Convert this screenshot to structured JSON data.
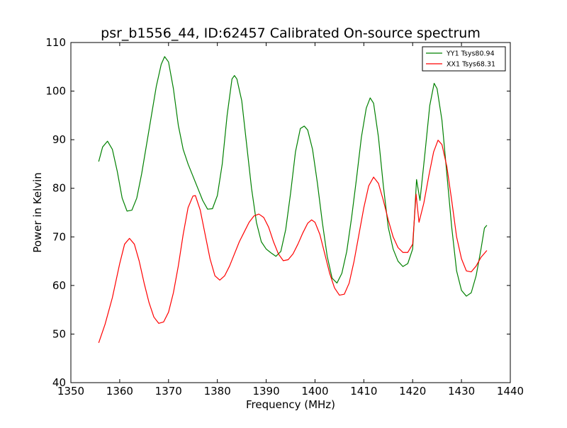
{
  "chart_data": {
    "type": "line",
    "title": "psr_b1556_44, ID:62457 Calibrated On-source spectrum",
    "xlabel": "Frequency (MHz)",
    "ylabel": "Power in Kelvin",
    "xlim": [
      1350,
      1440
    ],
    "ylim": [
      40,
      110
    ],
    "x_ticks": [
      1350,
      1360,
      1370,
      1380,
      1390,
      1400,
      1410,
      1420,
      1430,
      1440
    ],
    "y_ticks": [
      40,
      50,
      60,
      70,
      80,
      90,
      100,
      110
    ],
    "grid": false,
    "legend_position": "top-right",
    "series": [
      {
        "name": "YY1 Tsys80.94",
        "color": "#008000",
        "points": [
          [
            1355.7,
            85.5
          ],
          [
            1356.5,
            88.5
          ],
          [
            1357.5,
            89.7
          ],
          [
            1358.5,
            88
          ],
          [
            1359.5,
            83.5
          ],
          [
            1360.5,
            78
          ],
          [
            1361.5,
            75.3
          ],
          [
            1362.5,
            75.5
          ],
          [
            1363.5,
            78
          ],
          [
            1364.5,
            83
          ],
          [
            1365.5,
            89
          ],
          [
            1366.5,
            95
          ],
          [
            1367.5,
            101
          ],
          [
            1368.5,
            105.5
          ],
          [
            1369.2,
            107.1
          ],
          [
            1370,
            106
          ],
          [
            1371,
            100.5
          ],
          [
            1372,
            93
          ],
          [
            1373,
            88
          ],
          [
            1374,
            85
          ],
          [
            1375,
            82.5
          ],
          [
            1376,
            80
          ],
          [
            1377,
            77.5
          ],
          [
            1378,
            75.7
          ],
          [
            1379,
            75.8
          ],
          [
            1380,
            78.5
          ],
          [
            1381,
            85
          ],
          [
            1382,
            95
          ],
          [
            1383,
            102.5
          ],
          [
            1383.5,
            103.2
          ],
          [
            1384,
            102.5
          ],
          [
            1385,
            98
          ],
          [
            1386,
            89
          ],
          [
            1387,
            80
          ],
          [
            1388,
            73
          ],
          [
            1389,
            69
          ],
          [
            1390,
            67.5
          ],
          [
            1391,
            66.7
          ],
          [
            1392,
            66
          ],
          [
            1393,
            67
          ],
          [
            1394,
            71.5
          ],
          [
            1395,
            79
          ],
          [
            1396,
            87.5
          ],
          [
            1397,
            92.3
          ],
          [
            1397.8,
            92.8
          ],
          [
            1398.5,
            92
          ],
          [
            1399.5,
            88
          ],
          [
            1400.5,
            81
          ],
          [
            1401.5,
            73
          ],
          [
            1402.5,
            66
          ],
          [
            1403.5,
            61.5
          ],
          [
            1404.5,
            60.5
          ],
          [
            1405.5,
            62.5
          ],
          [
            1406.5,
            67
          ],
          [
            1407.5,
            74
          ],
          [
            1408.5,
            82
          ],
          [
            1409.5,
            90.5
          ],
          [
            1410.5,
            96.5
          ],
          [
            1411.3,
            98.6
          ],
          [
            1412,
            97.5
          ],
          [
            1413,
            90.5
          ],
          [
            1414,
            80.5
          ],
          [
            1415,
            72
          ],
          [
            1416,
            67.5
          ],
          [
            1417,
            65
          ],
          [
            1418,
            63.9
          ],
          [
            1419,
            64.5
          ],
          [
            1420,
            67.5
          ],
          [
            1420.8,
            81.8
          ],
          [
            1421.5,
            77.5
          ],
          [
            1422.5,
            87
          ],
          [
            1423.5,
            97
          ],
          [
            1424.4,
            101.6
          ],
          [
            1425,
            100.5
          ],
          [
            1426,
            94
          ],
          [
            1427,
            83
          ],
          [
            1428,
            72
          ],
          [
            1429,
            63
          ],
          [
            1430,
            59
          ],
          [
            1431,
            57.8
          ],
          [
            1432,
            58.5
          ],
          [
            1433,
            62
          ],
          [
            1434,
            67.5
          ],
          [
            1434.7,
            71.8
          ],
          [
            1435.2,
            72.4
          ]
        ]
      },
      {
        "name": "XX1 Tsys68.31",
        "color": "#ff0000",
        "points": [
          [
            1355.7,
            48.2
          ],
          [
            1357,
            52
          ],
          [
            1358.5,
            57.5
          ],
          [
            1360,
            64.5
          ],
          [
            1361,
            68.5
          ],
          [
            1362,
            69.7
          ],
          [
            1363,
            68.5
          ],
          [
            1364,
            65
          ],
          [
            1365,
            60.5
          ],
          [
            1366,
            56.5
          ],
          [
            1367,
            53.5
          ],
          [
            1368,
            52.2
          ],
          [
            1369,
            52.5
          ],
          [
            1370,
            54.5
          ],
          [
            1371,
            58.5
          ],
          [
            1372,
            64
          ],
          [
            1373,
            70.5
          ],
          [
            1374,
            76
          ],
          [
            1375,
            78.4
          ],
          [
            1375.5,
            78.5
          ],
          [
            1376.5,
            75.5
          ],
          [
            1377.5,
            70.5
          ],
          [
            1378.5,
            65.5
          ],
          [
            1379.5,
            62
          ],
          [
            1380.5,
            61.1
          ],
          [
            1381.5,
            62
          ],
          [
            1382.5,
            64
          ],
          [
            1383.5,
            66.5
          ],
          [
            1384.5,
            69
          ],
          [
            1385.5,
            71
          ],
          [
            1386.5,
            73
          ],
          [
            1387.5,
            74.3
          ],
          [
            1388.5,
            74.7
          ],
          [
            1389.5,
            74
          ],
          [
            1390.5,
            72
          ],
          [
            1391.5,
            69
          ],
          [
            1392.5,
            66.5
          ],
          [
            1393.5,
            65.1
          ],
          [
            1394.5,
            65.3
          ],
          [
            1395.5,
            66.5
          ],
          [
            1396.5,
            68.5
          ],
          [
            1397.5,
            70.8
          ],
          [
            1398.5,
            72.8
          ],
          [
            1399.3,
            73.5
          ],
          [
            1400,
            73
          ],
          [
            1401,
            70.5
          ],
          [
            1402,
            66.5
          ],
          [
            1403,
            62.5
          ],
          [
            1404,
            59.5
          ],
          [
            1405,
            58
          ],
          [
            1406,
            58.2
          ],
          [
            1407,
            60.5
          ],
          [
            1408,
            65
          ],
          [
            1409,
            70.5
          ],
          [
            1410,
            76
          ],
          [
            1411,
            80.5
          ],
          [
            1412,
            82.3
          ],
          [
            1413,
            81
          ],
          [
            1414,
            77.5
          ],
          [
            1415,
            73.5
          ],
          [
            1416,
            70
          ],
          [
            1417,
            67.8
          ],
          [
            1418,
            66.8
          ],
          [
            1419,
            66.8
          ],
          [
            1420,
            68.5
          ],
          [
            1420.7,
            78.8
          ],
          [
            1421.3,
            73
          ],
          [
            1422.3,
            77
          ],
          [
            1423.3,
            82.5
          ],
          [
            1424.3,
            87.5
          ],
          [
            1425.2,
            89.9
          ],
          [
            1426,
            89
          ],
          [
            1427,
            84.5
          ],
          [
            1428,
            77.5
          ],
          [
            1429,
            70
          ],
          [
            1430,
            65.5
          ],
          [
            1431,
            63
          ],
          [
            1432,
            62.8
          ],
          [
            1433,
            64
          ],
          [
            1434,
            65.8
          ],
          [
            1435.2,
            67.2
          ]
        ]
      }
    ]
  }
}
